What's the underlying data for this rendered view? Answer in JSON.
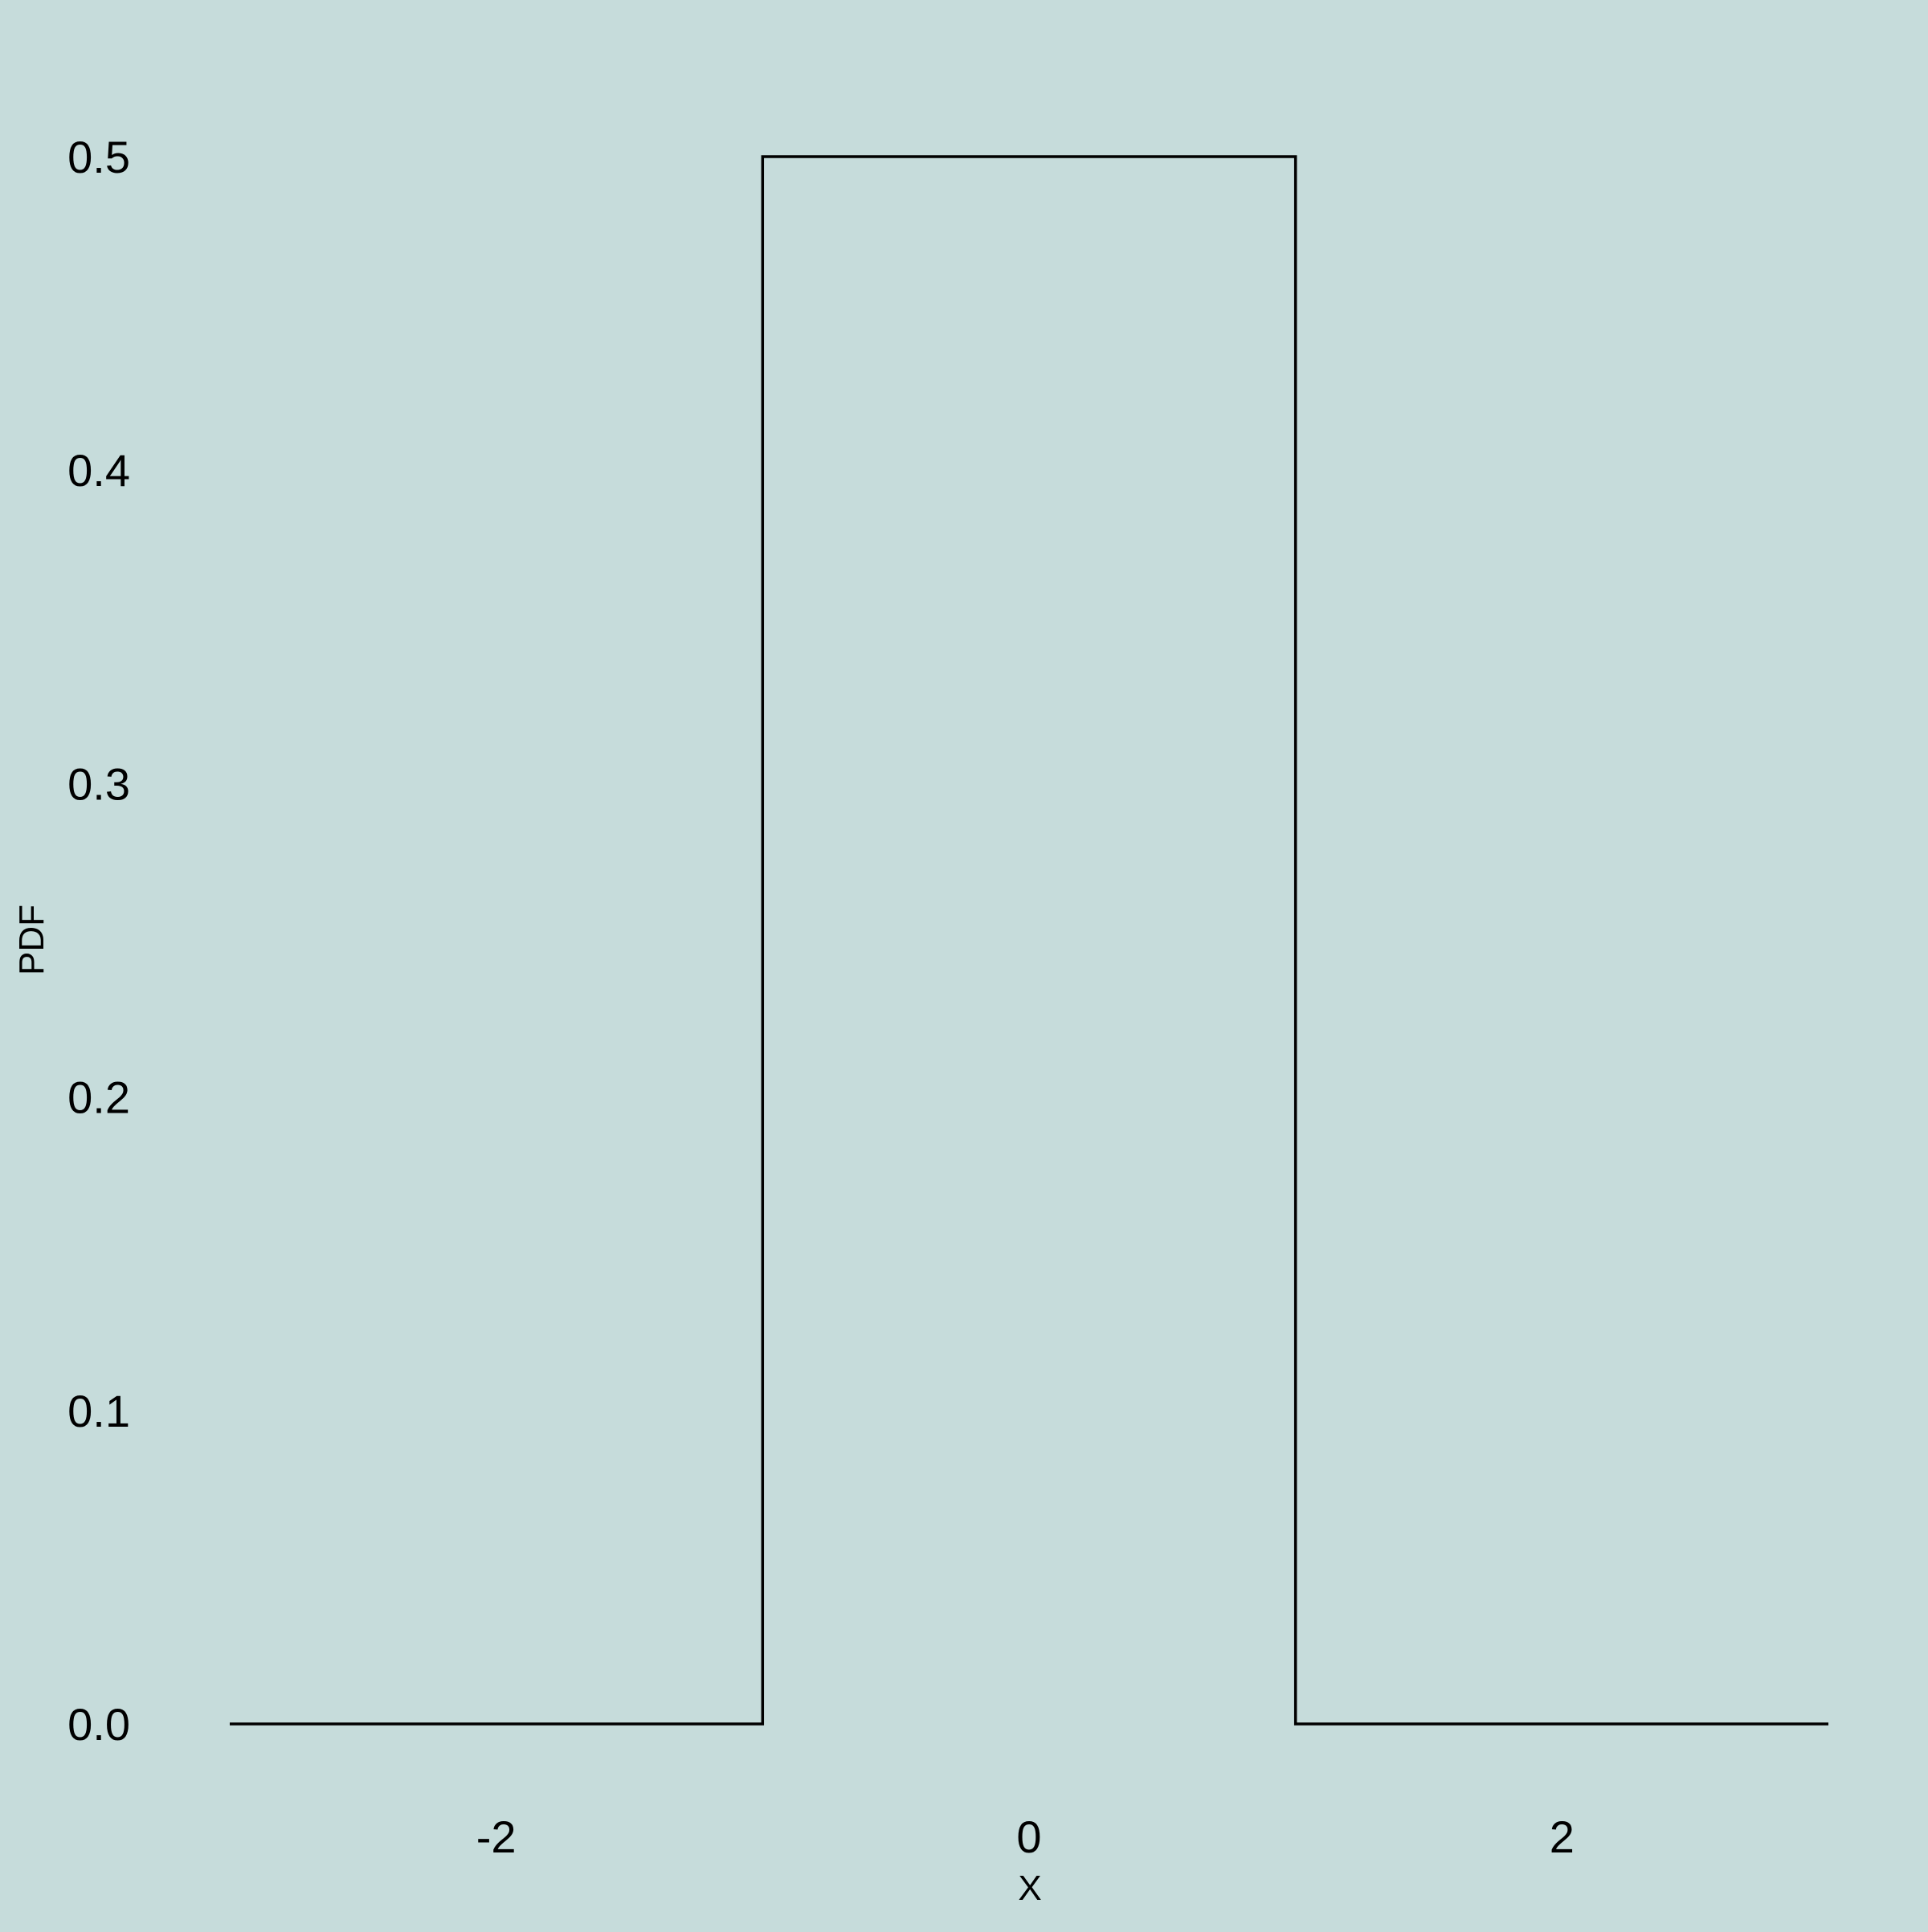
{
  "chart_data": {
    "type": "line",
    "title": "",
    "xlabel": "X",
    "ylabel": "PDF",
    "xlim": [
      -3,
      3
    ],
    "ylim": [
      0,
      0.5
    ],
    "x_ticks": [
      -2,
      0,
      2
    ],
    "x_tick_labels": [
      "-2",
      "0",
      "2"
    ],
    "y_ticks": [
      0,
      0.1,
      0.2,
      0.3,
      0.4,
      0.5
    ],
    "y_tick_labels": [
      "0.0",
      "0.1",
      "0.2",
      "0.3",
      "0.4",
      "0.5"
    ],
    "grid": false,
    "legend": "none",
    "series": [
      {
        "x": [
          -3,
          -1,
          -1,
          1,
          1,
          3
        ],
        "y": [
          0,
          0,
          0.5,
          0.5,
          0,
          0
        ]
      }
    ],
    "colors": {
      "background": "#c6dcdb",
      "line": "#000000",
      "text": "#000000"
    }
  }
}
